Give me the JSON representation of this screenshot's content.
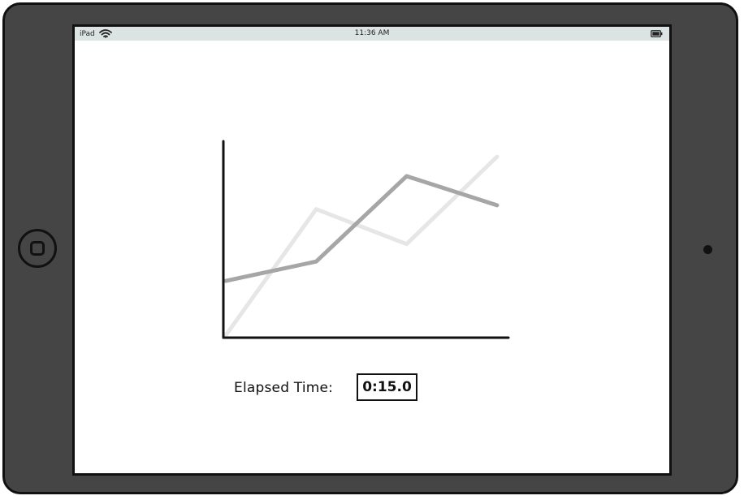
{
  "status_bar": {
    "device": "iPad",
    "time": "11:36 AM",
    "icons": [
      "wifi-icon",
      "battery-icon"
    ]
  },
  "elapsed": {
    "label": "Elapsed Time:",
    "value": "0:15.0"
  },
  "colors": {
    "bezel": "#454545",
    "status_bar": "#dbe3e3",
    "series_light": "#e6e6e6",
    "series_dark": "#a6a6a6",
    "axis": "#111111"
  },
  "chart_data": {
    "type": "line",
    "x": [
      0,
      1,
      2,
      3
    ],
    "series": [
      {
        "values": [
          0,
          6.5,
          4.7,
          9.2
        ]
      },
      {
        "values": [
          2.8,
          3.8,
          8.2,
          6.7
        ]
      }
    ],
    "xlim": [
      0,
      3.1
    ],
    "ylim": [
      0,
      10
    ],
    "grid": false,
    "legend": "none"
  }
}
